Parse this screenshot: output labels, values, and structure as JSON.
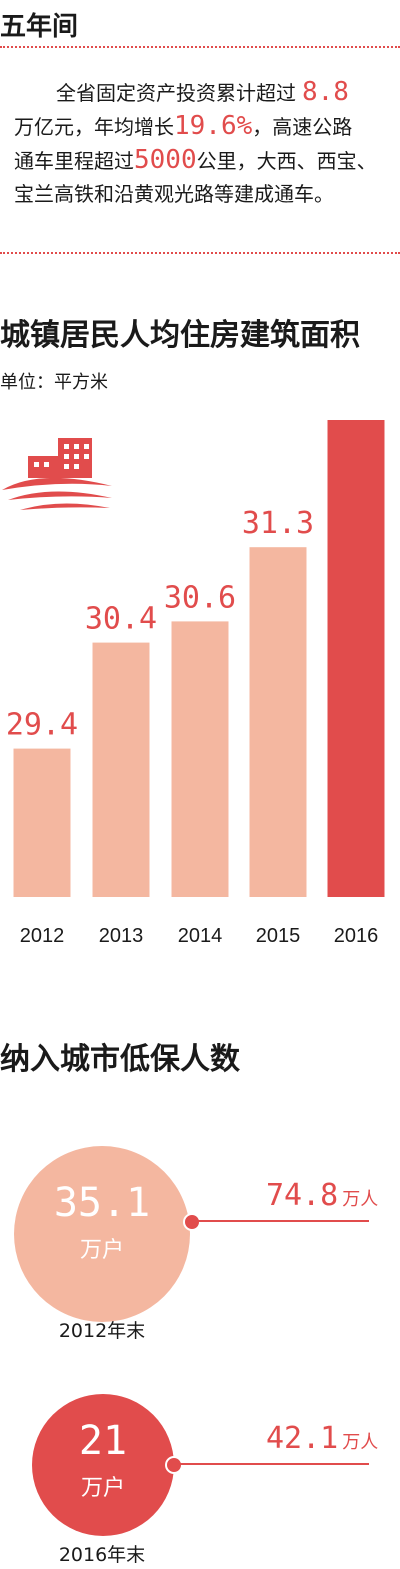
{
  "section1": {
    "title": "五年间",
    "para": {
      "l1_a": "全省固定资产投资累计超过",
      "l1_num": "8.8",
      "l2_a": "万亿元，年均增长",
      "l2_num": "19.6%",
      "l2_b": "，高速公路",
      "l3_a": "通车里程超过",
      "l3_num": "5000",
      "l3_b": "公里，大西、西宝、",
      "l4": "宝兰高铁和沿黄观光路等建成通车。"
    }
  },
  "section2": {
    "title": "城镇居民人均住房建筑面积",
    "unit": "单位：平方米"
  },
  "section3": {
    "title": "纳入城市低保人数",
    "items": [
      {
        "circle_value": "35.1",
        "circle_unit": "万户",
        "right_value": "74.8",
        "right_unit": "万人",
        "label": "2012年末"
      },
      {
        "circle_value": "21",
        "circle_unit": "万户",
        "right_value": "42.1",
        "right_unit": "万人",
        "label": "2016年末"
      }
    ]
  },
  "colors": {
    "accent": "#e14c4c",
    "bar_light": "#f4b7a0",
    "bar_highlight": "#e14c4c",
    "circle_light": "#f4b7a0"
  },
  "chart_data": {
    "type": "bar",
    "title": "城镇居民人均住房建筑面积",
    "ylabel": "单位：平方米",
    "categories": [
      "2012",
      "2013",
      "2014",
      "2015",
      "2016"
    ],
    "values": [
      29.4,
      30.4,
      30.6,
      31.3,
      32.6
    ],
    "grid": false,
    "highlight_index": 4
  }
}
